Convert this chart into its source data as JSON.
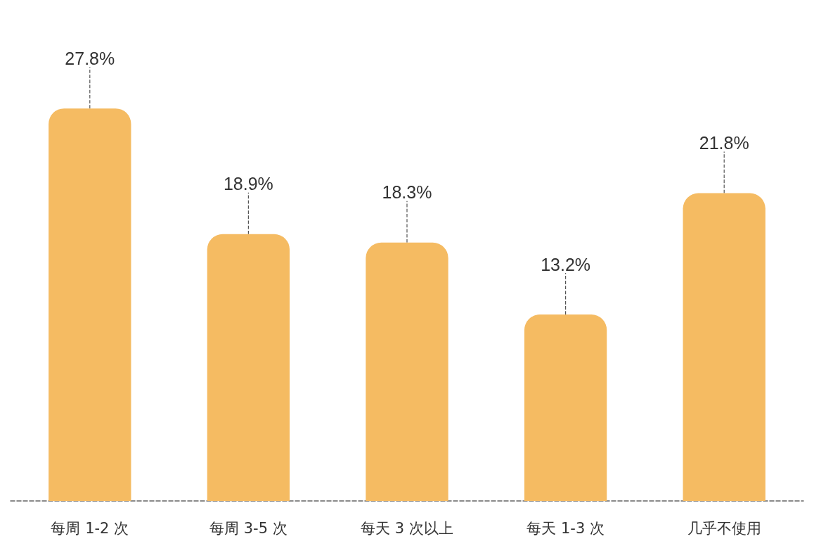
{
  "chart_data": {
    "type": "bar",
    "categories": [
      "每周 1-2 次",
      "每周 3-5 次",
      "每天 3 次以上",
      "每天 1-3 次",
      "几乎不使用"
    ],
    "values": [
      27.8,
      18.9,
      18.3,
      13.2,
      21.8
    ],
    "value_labels": [
      "27.8%",
      "18.9%",
      "18.3%",
      "13.2%",
      "21.8%"
    ],
    "color": "#f5bb62"
  }
}
